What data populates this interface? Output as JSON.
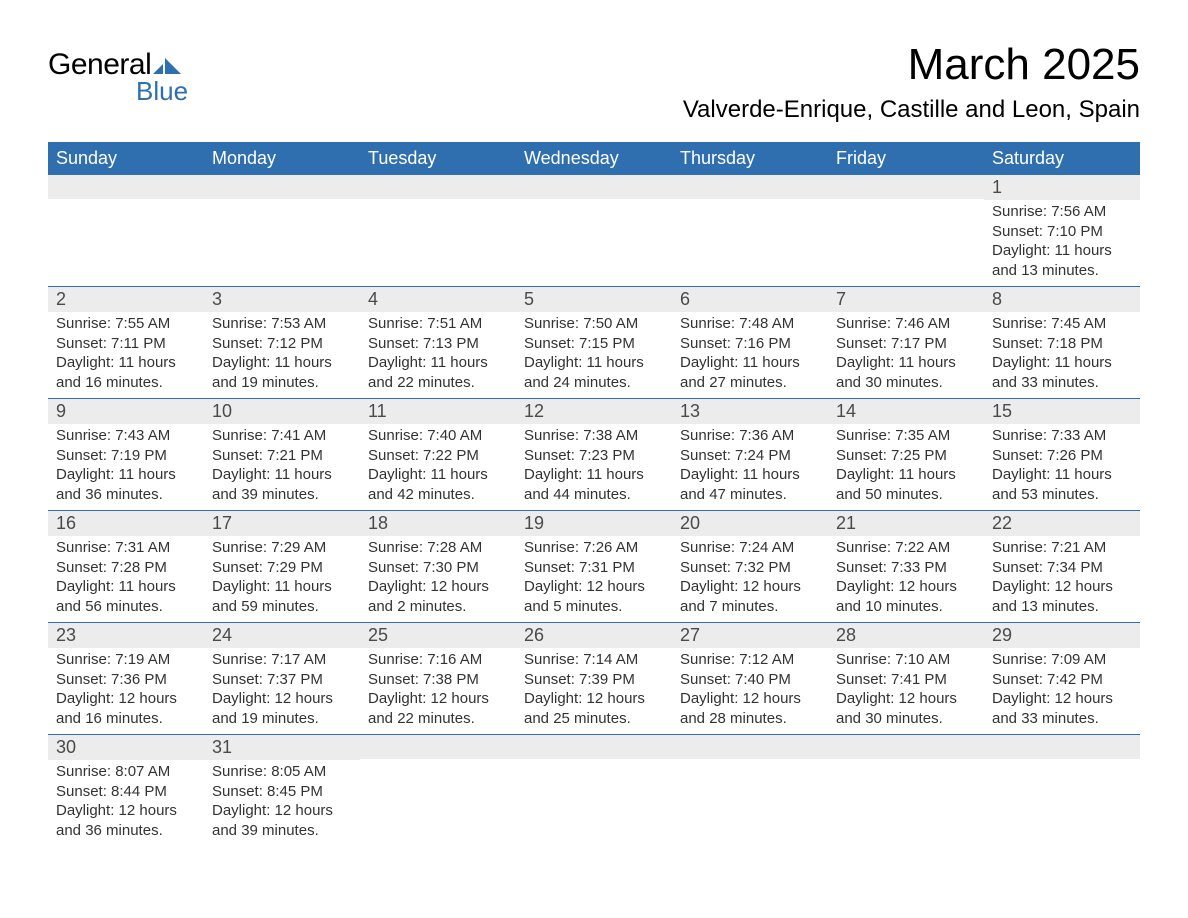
{
  "logo": {
    "text_general": "General",
    "text_blue": "Blue",
    "shape_color": "#2f6fb0"
  },
  "header": {
    "month_title": "March 2025",
    "location": "Valverde-Enrique, Castille and Leon, Spain"
  },
  "colors": {
    "header_bg": "#2f6fb0",
    "header_fg": "#ffffff",
    "daynum_bg": "#ececec",
    "daynum_fg": "#4a4a4a",
    "row_border": "#2f6fb0",
    "text": "#333333",
    "page_bg": "#ffffff"
  },
  "weekdays": [
    "Sunday",
    "Monday",
    "Tuesday",
    "Wednesday",
    "Thursday",
    "Friday",
    "Saturday"
  ],
  "weeks": [
    [
      {
        "day": "",
        "sunrise": "",
        "sunset": "",
        "daylight": ""
      },
      {
        "day": "",
        "sunrise": "",
        "sunset": "",
        "daylight": ""
      },
      {
        "day": "",
        "sunrise": "",
        "sunset": "",
        "daylight": ""
      },
      {
        "day": "",
        "sunrise": "",
        "sunset": "",
        "daylight": ""
      },
      {
        "day": "",
        "sunrise": "",
        "sunset": "",
        "daylight": ""
      },
      {
        "day": "",
        "sunrise": "",
        "sunset": "",
        "daylight": ""
      },
      {
        "day": "1",
        "sunrise": "Sunrise: 7:56 AM",
        "sunset": "Sunset: 7:10 PM",
        "daylight": "Daylight: 11 hours and 13 minutes."
      }
    ],
    [
      {
        "day": "2",
        "sunrise": "Sunrise: 7:55 AM",
        "sunset": "Sunset: 7:11 PM",
        "daylight": "Daylight: 11 hours and 16 minutes."
      },
      {
        "day": "3",
        "sunrise": "Sunrise: 7:53 AM",
        "sunset": "Sunset: 7:12 PM",
        "daylight": "Daylight: 11 hours and 19 minutes."
      },
      {
        "day": "4",
        "sunrise": "Sunrise: 7:51 AM",
        "sunset": "Sunset: 7:13 PM",
        "daylight": "Daylight: 11 hours and 22 minutes."
      },
      {
        "day": "5",
        "sunrise": "Sunrise: 7:50 AM",
        "sunset": "Sunset: 7:15 PM",
        "daylight": "Daylight: 11 hours and 24 minutes."
      },
      {
        "day": "6",
        "sunrise": "Sunrise: 7:48 AM",
        "sunset": "Sunset: 7:16 PM",
        "daylight": "Daylight: 11 hours and 27 minutes."
      },
      {
        "day": "7",
        "sunrise": "Sunrise: 7:46 AM",
        "sunset": "Sunset: 7:17 PM",
        "daylight": "Daylight: 11 hours and 30 minutes."
      },
      {
        "day": "8",
        "sunrise": "Sunrise: 7:45 AM",
        "sunset": "Sunset: 7:18 PM",
        "daylight": "Daylight: 11 hours and 33 minutes."
      }
    ],
    [
      {
        "day": "9",
        "sunrise": "Sunrise: 7:43 AM",
        "sunset": "Sunset: 7:19 PM",
        "daylight": "Daylight: 11 hours and 36 minutes."
      },
      {
        "day": "10",
        "sunrise": "Sunrise: 7:41 AM",
        "sunset": "Sunset: 7:21 PM",
        "daylight": "Daylight: 11 hours and 39 minutes."
      },
      {
        "day": "11",
        "sunrise": "Sunrise: 7:40 AM",
        "sunset": "Sunset: 7:22 PM",
        "daylight": "Daylight: 11 hours and 42 minutes."
      },
      {
        "day": "12",
        "sunrise": "Sunrise: 7:38 AM",
        "sunset": "Sunset: 7:23 PM",
        "daylight": "Daylight: 11 hours and 44 minutes."
      },
      {
        "day": "13",
        "sunrise": "Sunrise: 7:36 AM",
        "sunset": "Sunset: 7:24 PM",
        "daylight": "Daylight: 11 hours and 47 minutes."
      },
      {
        "day": "14",
        "sunrise": "Sunrise: 7:35 AM",
        "sunset": "Sunset: 7:25 PM",
        "daylight": "Daylight: 11 hours and 50 minutes."
      },
      {
        "day": "15",
        "sunrise": "Sunrise: 7:33 AM",
        "sunset": "Sunset: 7:26 PM",
        "daylight": "Daylight: 11 hours and 53 minutes."
      }
    ],
    [
      {
        "day": "16",
        "sunrise": "Sunrise: 7:31 AM",
        "sunset": "Sunset: 7:28 PM",
        "daylight": "Daylight: 11 hours and 56 minutes."
      },
      {
        "day": "17",
        "sunrise": "Sunrise: 7:29 AM",
        "sunset": "Sunset: 7:29 PM",
        "daylight": "Daylight: 11 hours and 59 minutes."
      },
      {
        "day": "18",
        "sunrise": "Sunrise: 7:28 AM",
        "sunset": "Sunset: 7:30 PM",
        "daylight": "Daylight: 12 hours and 2 minutes."
      },
      {
        "day": "19",
        "sunrise": "Sunrise: 7:26 AM",
        "sunset": "Sunset: 7:31 PM",
        "daylight": "Daylight: 12 hours and 5 minutes."
      },
      {
        "day": "20",
        "sunrise": "Sunrise: 7:24 AM",
        "sunset": "Sunset: 7:32 PM",
        "daylight": "Daylight: 12 hours and 7 minutes."
      },
      {
        "day": "21",
        "sunrise": "Sunrise: 7:22 AM",
        "sunset": "Sunset: 7:33 PM",
        "daylight": "Daylight: 12 hours and 10 minutes."
      },
      {
        "day": "22",
        "sunrise": "Sunrise: 7:21 AM",
        "sunset": "Sunset: 7:34 PM",
        "daylight": "Daylight: 12 hours and 13 minutes."
      }
    ],
    [
      {
        "day": "23",
        "sunrise": "Sunrise: 7:19 AM",
        "sunset": "Sunset: 7:36 PM",
        "daylight": "Daylight: 12 hours and 16 minutes."
      },
      {
        "day": "24",
        "sunrise": "Sunrise: 7:17 AM",
        "sunset": "Sunset: 7:37 PM",
        "daylight": "Daylight: 12 hours and 19 minutes."
      },
      {
        "day": "25",
        "sunrise": "Sunrise: 7:16 AM",
        "sunset": "Sunset: 7:38 PM",
        "daylight": "Daylight: 12 hours and 22 minutes."
      },
      {
        "day": "26",
        "sunrise": "Sunrise: 7:14 AM",
        "sunset": "Sunset: 7:39 PM",
        "daylight": "Daylight: 12 hours and 25 minutes."
      },
      {
        "day": "27",
        "sunrise": "Sunrise: 7:12 AM",
        "sunset": "Sunset: 7:40 PM",
        "daylight": "Daylight: 12 hours and 28 minutes."
      },
      {
        "day": "28",
        "sunrise": "Sunrise: 7:10 AM",
        "sunset": "Sunset: 7:41 PM",
        "daylight": "Daylight: 12 hours and 30 minutes."
      },
      {
        "day": "29",
        "sunrise": "Sunrise: 7:09 AM",
        "sunset": "Sunset: 7:42 PM",
        "daylight": "Daylight: 12 hours and 33 minutes."
      }
    ],
    [
      {
        "day": "30",
        "sunrise": "Sunrise: 8:07 AM",
        "sunset": "Sunset: 8:44 PM",
        "daylight": "Daylight: 12 hours and 36 minutes."
      },
      {
        "day": "31",
        "sunrise": "Sunrise: 8:05 AM",
        "sunset": "Sunset: 8:45 PM",
        "daylight": "Daylight: 12 hours and 39 minutes."
      },
      {
        "day": "",
        "sunrise": "",
        "sunset": "",
        "daylight": ""
      },
      {
        "day": "",
        "sunrise": "",
        "sunset": "",
        "daylight": ""
      },
      {
        "day": "",
        "sunrise": "",
        "sunset": "",
        "daylight": ""
      },
      {
        "day": "",
        "sunrise": "",
        "sunset": "",
        "daylight": ""
      },
      {
        "day": "",
        "sunrise": "",
        "sunset": "",
        "daylight": ""
      }
    ]
  ]
}
